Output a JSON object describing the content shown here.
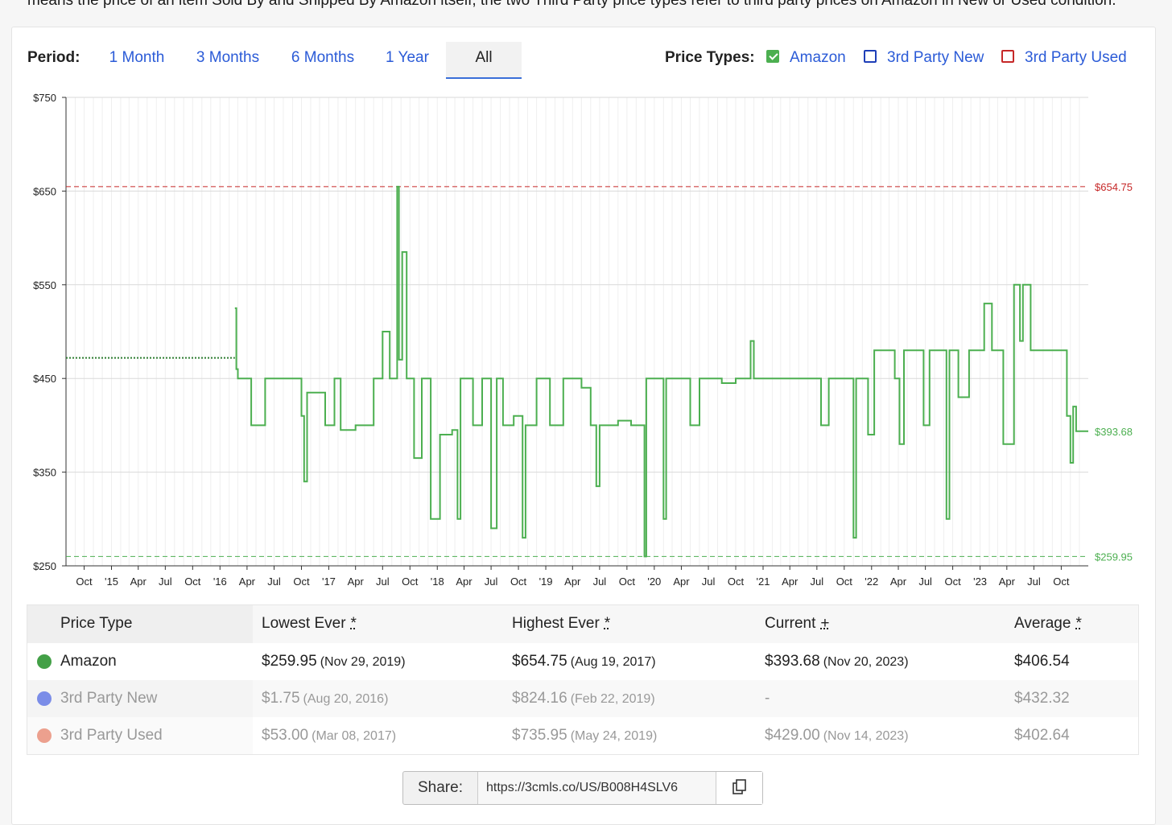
{
  "intro_text": "means the price of an item Sold By and Shipped By Amazon itself, the two Third Party price types refer to third party prices on Amazon in New or Used condition.",
  "period": {
    "label": "Period:",
    "tabs": [
      "1 Month",
      "3 Months",
      "6 Months",
      "1 Year",
      "All"
    ],
    "active": "All"
  },
  "price_types": {
    "label": "Price Types:",
    "items": [
      {
        "label": "Amazon",
        "checked": true,
        "color": "#4caf50"
      },
      {
        "label": "3rd Party New",
        "checked": false,
        "color": "#1e3fb8"
      },
      {
        "label": "3rd Party Used",
        "checked": false,
        "color": "#c62828"
      }
    ]
  },
  "chart_data": {
    "type": "line",
    "series": [
      {
        "name": "Amazon",
        "color": "#4caf50",
        "points": [
          [
            "2016-02-20",
            525
          ],
          [
            "2016-02-25",
            460
          ],
          [
            "2016-03-01",
            450
          ],
          [
            "2016-04-15",
            400
          ],
          [
            "2016-06-01",
            450
          ],
          [
            "2016-09-15",
            450
          ],
          [
            "2016-10-01",
            410
          ],
          [
            "2016-10-10",
            340
          ],
          [
            "2016-10-20",
            435
          ],
          [
            "2016-12-20",
            400
          ],
          [
            "2017-01-20",
            450
          ],
          [
            "2017-02-10",
            395
          ],
          [
            "2017-04-01",
            400
          ],
          [
            "2017-06-01",
            450
          ],
          [
            "2017-07-01",
            500
          ],
          [
            "2017-07-25",
            450
          ],
          [
            "2017-08-19",
            654.75
          ],
          [
            "2017-08-25",
            470
          ],
          [
            "2017-09-05",
            585
          ],
          [
            "2017-09-20",
            450
          ],
          [
            "2017-10-15",
            365
          ],
          [
            "2017-11-10",
            450
          ],
          [
            "2017-12-10",
            300
          ],
          [
            "2018-01-10",
            390
          ],
          [
            "2018-02-20",
            395
          ],
          [
            "2018-03-10",
            300
          ],
          [
            "2018-03-20",
            450
          ],
          [
            "2018-05-01",
            400
          ],
          [
            "2018-06-01",
            450
          ],
          [
            "2018-07-01",
            290
          ],
          [
            "2018-07-20",
            450
          ],
          [
            "2018-08-10",
            400
          ],
          [
            "2018-09-15",
            410
          ],
          [
            "2018-10-15",
            280
          ],
          [
            "2018-10-25",
            400
          ],
          [
            "2018-12-01",
            450
          ],
          [
            "2019-01-15",
            400
          ],
          [
            "2019-03-01",
            450
          ],
          [
            "2019-05-01",
            440
          ],
          [
            "2019-06-01",
            400
          ],
          [
            "2019-06-20",
            335
          ],
          [
            "2019-07-01",
            400
          ],
          [
            "2019-09-01",
            405
          ],
          [
            "2019-10-15",
            400
          ],
          [
            "2019-11-29",
            259.95
          ],
          [
            "2019-12-05",
            450
          ],
          [
            "2020-02-01",
            300
          ],
          [
            "2020-02-10",
            450
          ],
          [
            "2020-05-01",
            400
          ],
          [
            "2020-06-01",
            450
          ],
          [
            "2020-08-15",
            445
          ],
          [
            "2020-10-01",
            450
          ],
          [
            "2020-11-20",
            490
          ],
          [
            "2020-12-01",
            450
          ],
          [
            "2021-07-15",
            400
          ],
          [
            "2021-08-10",
            450
          ],
          [
            "2021-11-01",
            280
          ],
          [
            "2021-11-10",
            450
          ],
          [
            "2021-12-20",
            390
          ],
          [
            "2022-01-10",
            480
          ],
          [
            "2022-03-20",
            450
          ],
          [
            "2022-04-05",
            380
          ],
          [
            "2022-04-20",
            480
          ],
          [
            "2022-06-25",
            400
          ],
          [
            "2022-07-15",
            480
          ],
          [
            "2022-09-10",
            300
          ],
          [
            "2022-09-20",
            480
          ],
          [
            "2022-10-20",
            430
          ],
          [
            "2022-11-25",
            480
          ],
          [
            "2023-01-15",
            530
          ],
          [
            "2023-02-10",
            480
          ],
          [
            "2023-03-20",
            380
          ],
          [
            "2023-04-25",
            550
          ],
          [
            "2023-05-15",
            490
          ],
          [
            "2023-05-25",
            550
          ],
          [
            "2023-06-20",
            480
          ],
          [
            "2023-10-20",
            410
          ],
          [
            "2023-11-01",
            360
          ],
          [
            "2023-11-10",
            420
          ],
          [
            "2023-11-20",
            393.68
          ]
        ]
      },
      {
        "name": "Amazon (estimated)",
        "style": "dotted",
        "color": "#2e7d32",
        "points": [
          [
            "2014-08-01",
            472
          ],
          [
            "2016-02-20",
            472
          ]
        ]
      }
    ],
    "reference_lines": [
      {
        "value": 654.75,
        "label": "$654.75",
        "color": "#c62828",
        "style": "dashed"
      },
      {
        "value": 259.95,
        "label": "$259.95",
        "color": "#4caf50",
        "style": "dashed"
      },
      {
        "value": 393.68,
        "label": "$393.68",
        "color": "#4caf50",
        "style": "marker"
      }
    ],
    "ylim": [
      250,
      750
    ],
    "yticks": [
      "$750",
      "$650",
      "$550",
      "$450",
      "$350",
      "$250"
    ],
    "ytick_values": [
      750,
      650,
      550,
      450,
      350,
      250
    ],
    "xlim": [
      "2014-08-01",
      "2023-12-31"
    ],
    "xticks": [
      {
        "label": "Oct",
        "date": "2014-10-01"
      },
      {
        "label": "'15",
        "date": "2015-01-01"
      },
      {
        "label": "Apr",
        "date": "2015-04-01"
      },
      {
        "label": "Jul",
        "date": "2015-07-01"
      },
      {
        "label": "Oct",
        "date": "2015-10-01"
      },
      {
        "label": "'16",
        "date": "2016-01-01"
      },
      {
        "label": "Apr",
        "date": "2016-04-01"
      },
      {
        "label": "Jul",
        "date": "2016-07-01"
      },
      {
        "label": "Oct",
        "date": "2016-10-01"
      },
      {
        "label": "'17",
        "date": "2017-01-01"
      },
      {
        "label": "Apr",
        "date": "2017-04-01"
      },
      {
        "label": "Jul",
        "date": "2017-07-01"
      },
      {
        "label": "Oct",
        "date": "2017-10-01"
      },
      {
        "label": "'18",
        "date": "2018-01-01"
      },
      {
        "label": "Apr",
        "date": "2018-04-01"
      },
      {
        "label": "Jul",
        "date": "2018-07-01"
      },
      {
        "label": "Oct",
        "date": "2018-10-01"
      },
      {
        "label": "'19",
        "date": "2019-01-01"
      },
      {
        "label": "Apr",
        "date": "2019-04-01"
      },
      {
        "label": "Jul",
        "date": "2019-07-01"
      },
      {
        "label": "Oct",
        "date": "2019-10-01"
      },
      {
        "label": "'20",
        "date": "2020-01-01"
      },
      {
        "label": "Apr",
        "date": "2020-04-01"
      },
      {
        "label": "Jul",
        "date": "2020-07-01"
      },
      {
        "label": "Oct",
        "date": "2020-10-01"
      },
      {
        "label": "'21",
        "date": "2021-01-01"
      },
      {
        "label": "Apr",
        "date": "2021-04-01"
      },
      {
        "label": "Jul",
        "date": "2021-07-01"
      },
      {
        "label": "Oct",
        "date": "2021-10-01"
      },
      {
        "label": "'22",
        "date": "2022-01-01"
      },
      {
        "label": "Apr",
        "date": "2022-04-01"
      },
      {
        "label": "Jul",
        "date": "2022-07-01"
      },
      {
        "label": "Oct",
        "date": "2022-10-01"
      },
      {
        "label": "'23",
        "date": "2023-01-01"
      },
      {
        "label": "Apr",
        "date": "2023-04-01"
      },
      {
        "label": "Jul",
        "date": "2023-07-01"
      },
      {
        "label": "Oct",
        "date": "2023-10-01"
      }
    ],
    "grid": true
  },
  "table": {
    "headers": {
      "price_type": "Price Type",
      "lowest": "Lowest Ever",
      "highest": "Highest Ever",
      "current": "Current",
      "average": "Average"
    },
    "header_marks": {
      "lowest": "*",
      "highest": "*",
      "current": "+",
      "average": "*"
    },
    "rows": [
      {
        "name": "Amazon",
        "color": "#43a047",
        "lowest": "$259.95",
        "lowest_date": "(Nov 29, 2019)",
        "highest": "$654.75",
        "highest_date": "(Aug 19, 2017)",
        "current": "$393.68",
        "current_date": "(Nov 20, 2023)",
        "average": "$406.54"
      },
      {
        "name": "3rd Party New",
        "color": "#7b8de8",
        "lowest": "$1.75",
        "lowest_date": "(Aug 20, 2016)",
        "highest": "$824.16",
        "highest_date": "(Feb 22, 2019)",
        "current": "-",
        "current_date": "",
        "average": "$432.32"
      },
      {
        "name": "3rd Party Used",
        "color": "#eca08e",
        "lowest": "$53.00",
        "lowest_date": "(Mar 08, 2017)",
        "highest": "$735.95",
        "highest_date": "(May 24, 2019)",
        "current": "$429.00",
        "current_date": "(Nov 14, 2023)",
        "average": "$402.64"
      }
    ]
  },
  "share": {
    "label": "Share:",
    "url": "https://3cmls.co/US/B008H4SLV6",
    "copy_icon": "copy-icon"
  }
}
